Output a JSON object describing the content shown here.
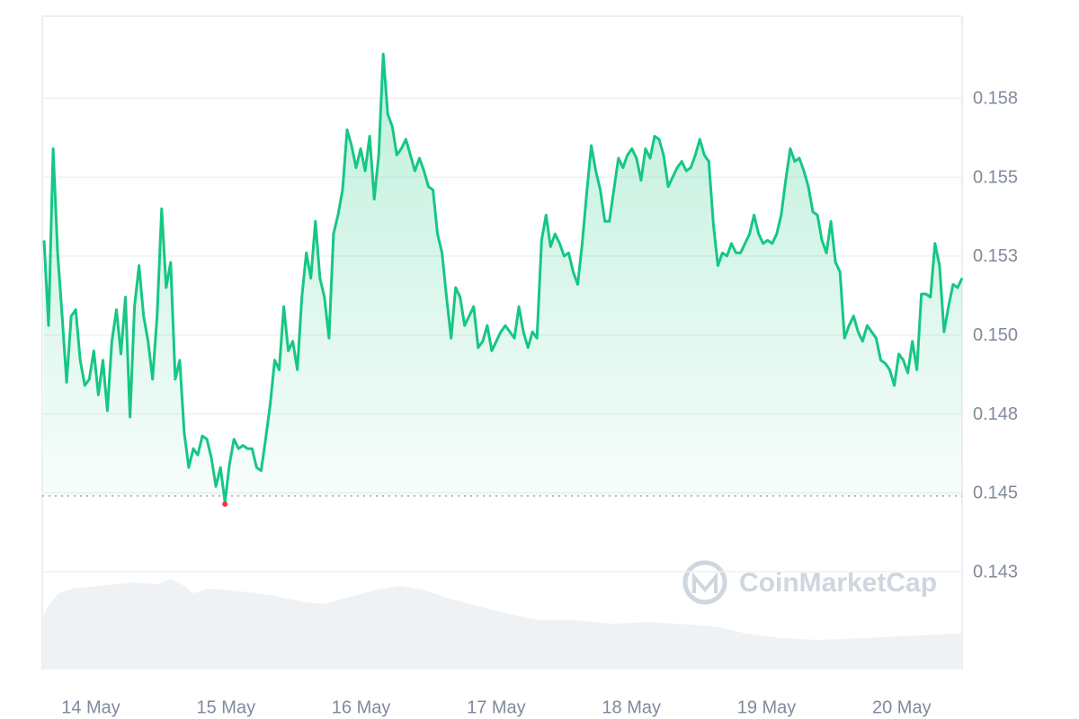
{
  "chart_data": {
    "type": "line",
    "x_labels": [
      "14 May",
      "15 May",
      "16 May",
      "17 May",
      "18 May",
      "19 May",
      "20 May"
    ],
    "series": [
      {
        "color": "#16c784",
        "values": [
          0.153,
          0.1503,
          0.1559,
          0.1526,
          0.1506,
          0.1485,
          0.1506,
          0.1508,
          0.1492,
          0.1484,
          0.1486,
          0.1495,
          0.1481,
          0.1492,
          0.1476,
          0.1498,
          0.1508,
          0.1494,
          0.1512,
          0.1474,
          0.1509,
          0.1522,
          0.1506,
          0.1498,
          0.1486,
          0.1506,
          0.154,
          0.1515,
          0.1523,
          0.1486,
          0.1492,
          0.1469,
          0.1458,
          0.1464,
          0.1462,
          0.1468,
          0.1467,
          0.1461,
          0.1452,
          0.1458,
          0.1447,
          0.1459,
          0.1467,
          0.1464,
          0.1465,
          0.1464,
          0.1464,
          0.1458,
          0.1457,
          0.1467,
          0.1478,
          0.1492,
          0.1489,
          0.1509,
          0.1495,
          0.1498,
          0.1489,
          0.1512,
          0.1526,
          0.1518,
          0.1536,
          0.1518,
          0.1512,
          0.1499,
          0.1532,
          0.1538,
          0.1546,
          0.1565,
          0.156,
          0.1553,
          0.1559,
          0.1552,
          0.1563,
          0.1543,
          0.1557,
          0.1589,
          0.157,
          0.1566,
          0.1557,
          0.1559,
          0.1562,
          0.1557,
          0.1552,
          0.1556,
          0.1552,
          0.1547,
          0.1546,
          0.1532,
          0.1526,
          0.1512,
          0.1499,
          0.1515,
          0.1512,
          0.1503,
          0.1506,
          0.1509,
          0.1496,
          0.1498,
          0.1503,
          0.1495,
          0.1498,
          0.1501,
          0.1503,
          0.1501,
          0.1499,
          0.1509,
          0.1501,
          0.1496,
          0.1501,
          0.1499,
          0.153,
          0.1538,
          0.1528,
          0.1532,
          0.1529,
          0.1525,
          0.1526,
          0.152,
          0.1516,
          0.1529,
          0.1545,
          0.156,
          0.1552,
          0.1546,
          0.1536,
          0.1536,
          0.1546,
          0.1556,
          0.1553,
          0.1557,
          0.1559,
          0.1556,
          0.1549,
          0.1559,
          0.1556,
          0.1563,
          0.1562,
          0.1557,
          0.1547,
          0.155,
          0.1553,
          0.1555,
          0.1552,
          0.1553,
          0.1557,
          0.1562,
          0.1557,
          0.1555,
          0.1535,
          0.1522,
          0.1526,
          0.1525,
          0.1529,
          0.1526,
          0.1526,
          0.1529,
          0.1532,
          0.1538,
          0.1532,
          0.1529,
          0.153,
          0.1529,
          0.1532,
          0.1538,
          0.1549,
          0.1559,
          0.1555,
          0.1556,
          0.1552,
          0.1547,
          0.1539,
          0.1538,
          0.153,
          0.1526,
          0.1536,
          0.1523,
          0.152,
          0.1499,
          0.1503,
          0.1506,
          0.1501,
          0.1498,
          0.1503,
          0.1501,
          0.1499,
          0.1492,
          0.1491,
          0.1489,
          0.1484,
          0.1494,
          0.1492,
          0.1488,
          0.1498,
          0.1489,
          0.1513,
          0.1513,
          0.1512,
          0.1529,
          0.1522,
          0.1501,
          0.1509,
          0.1516,
          0.1515,
          0.1518
        ]
      }
    ],
    "low": 0.1449,
    "low_color": "#ea3943",
    "ylim": [
      0.1394,
      0.1601
    ],
    "yticks": [
      {
        "value": 0.1425,
        "label": "0.143"
      },
      {
        "value": 0.145,
        "label": "0.145"
      },
      {
        "value": 0.1475,
        "label": "0.148"
      },
      {
        "value": 0.15,
        "label": "0.150"
      },
      {
        "value": 0.1525,
        "label": "0.153"
      },
      {
        "value": 0.155,
        "label": "0.155"
      },
      {
        "value": 0.1575,
        "label": "0.158"
      }
    ],
    "grid": true,
    "watermark": "CoinMarketCap"
  }
}
